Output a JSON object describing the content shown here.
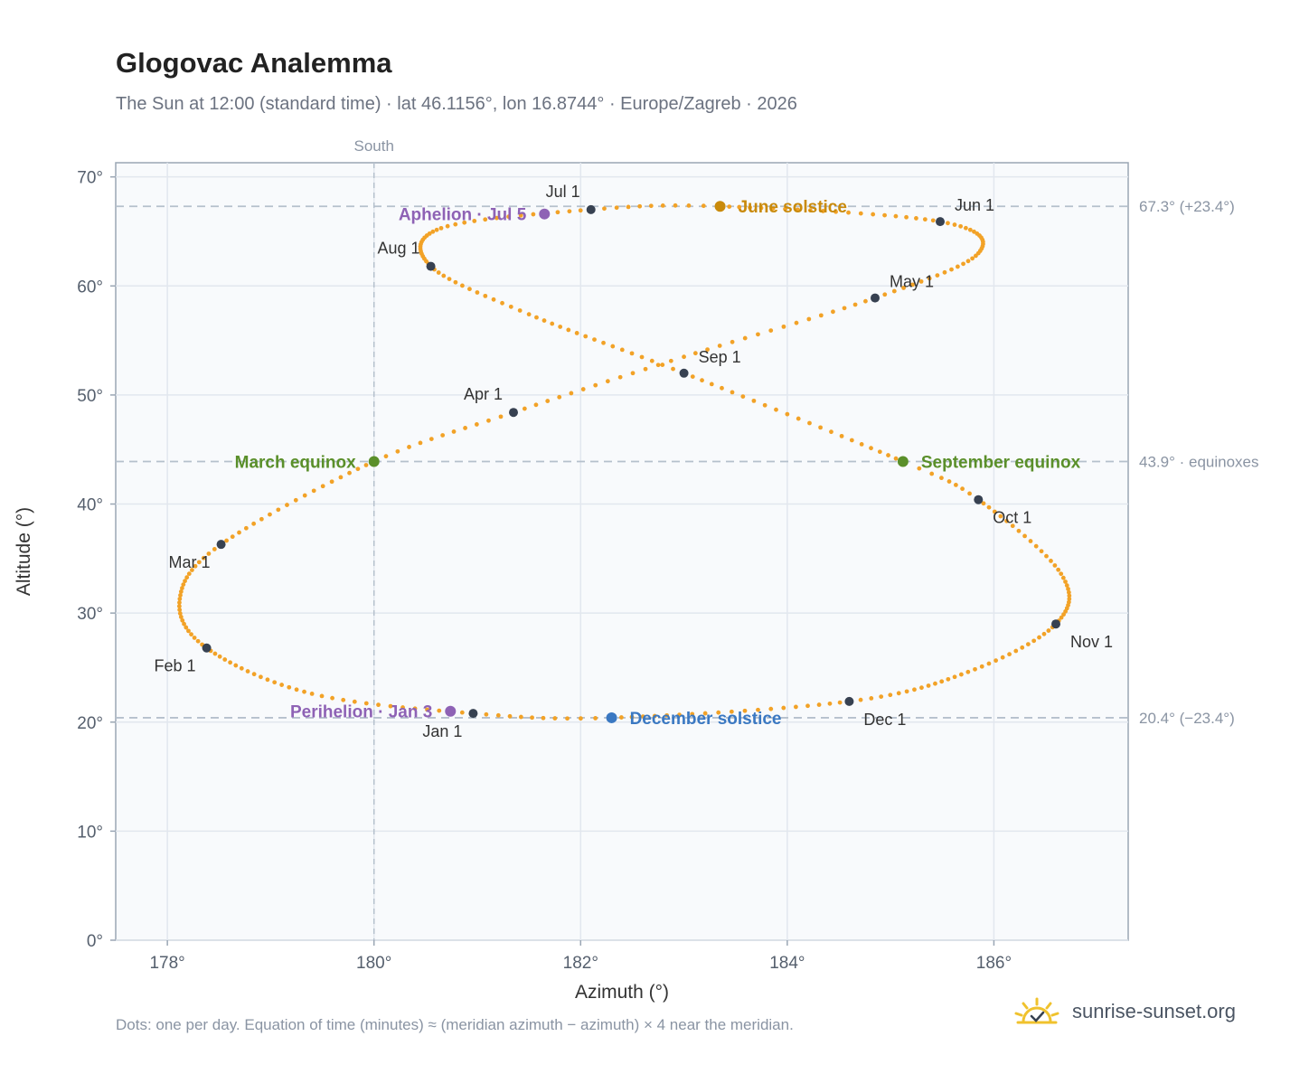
{
  "header": {
    "title": "Glogovac Analemma",
    "subtitle": "The Sun at 12:00 (standard time) · lat 46.1156°, lon 16.8744° · Europe/Zagreb · 2026"
  },
  "footer": {
    "note": "Dots: one per day. Equation of time (minutes) ≈ (meridian azimuth − azimuth) × 4 near the meridian.",
    "brand": "sunrise-sunset.org"
  },
  "colors": {
    "path": "#f2a227",
    "month_dot": "#374151",
    "june_solstice": "#c98a0b",
    "december_solstice": "#3a78c2",
    "equinox": "#5a8f2a",
    "apsis": "#8e62b5",
    "reference_line": "#b5c0cc",
    "plot_bg": "#f8fafc"
  },
  "chart_data": {
    "type": "scatter",
    "xlabel": "Azimuth (°)",
    "ylabel": "Altitude (°)",
    "xlim": [
      177.5,
      187.3
    ],
    "ylim": [
      0,
      71.3
    ],
    "xticks": [
      178,
      180,
      182,
      184,
      186
    ],
    "yticks": [
      0,
      10,
      20,
      30,
      40,
      50,
      60,
      70
    ],
    "grid": true,
    "meridian": {
      "azimuth": 180,
      "label": "South"
    },
    "reference_lines": [
      {
        "altitude": 67.3,
        "label": "67.3° (+23.4°)"
      },
      {
        "altitude": 43.9,
        "label": "43.9° · equinoxes"
      },
      {
        "altitude": 20.4,
        "label": "20.4° (−23.4°)"
      }
    ],
    "path_keypoints": [
      {
        "doy": 1,
        "az": 180.96,
        "alt": 20.8
      },
      {
        "doy": 15,
        "az": 179.4,
        "alt": 22.6
      },
      {
        "doy": 32,
        "az": 178.38,
        "alt": 26.8
      },
      {
        "doy": 46,
        "az": 178.12,
        "alt": 31.3
      },
      {
        "doy": 60,
        "az": 178.52,
        "alt": 36.3
      },
      {
        "doy": 79,
        "az": 180.0,
        "alt": 43.9
      },
      {
        "doy": 91,
        "az": 181.35,
        "alt": 48.4
      },
      {
        "doy": 105,
        "az": 183.0,
        "alt": 53.5
      },
      {
        "doy": 121,
        "az": 184.85,
        "alt": 58.9
      },
      {
        "doy": 136,
        "az": 185.85,
        "alt": 63.0
      },
      {
        "doy": 152,
        "az": 185.48,
        "alt": 65.9
      },
      {
        "doy": 172,
        "az": 183.35,
        "alt": 67.3
      },
      {
        "doy": 182,
        "az": 182.1,
        "alt": 67.0
      },
      {
        "doy": 196,
        "az": 180.65,
        "alt": 65.3
      },
      {
        "doy": 213,
        "az": 180.55,
        "alt": 61.8
      },
      {
        "doy": 227,
        "az": 181.5,
        "alt": 57.4
      },
      {
        "doy": 244,
        "az": 183.0,
        "alt": 52.0
      },
      {
        "doy": 266,
        "az": 185.12,
        "alt": 43.9
      },
      {
        "doy": 274,
        "az": 185.85,
        "alt": 40.4
      },
      {
        "doy": 290,
        "az": 186.65,
        "alt": 33.6
      },
      {
        "doy": 305,
        "az": 186.6,
        "alt": 29.0
      },
      {
        "doy": 320,
        "az": 185.75,
        "alt": 24.6
      },
      {
        "doy": 335,
        "az": 184.6,
        "alt": 21.9
      },
      {
        "doy": 355,
        "az": 182.3,
        "alt": 20.4
      },
      {
        "doy": 366,
        "az": 180.96,
        "alt": 20.8
      }
    ],
    "month_markers": [
      {
        "label": "Jan 1",
        "az": 180.96,
        "alt": 20.8,
        "pos": "below-left"
      },
      {
        "label": "Feb 1",
        "az": 178.38,
        "alt": 26.8,
        "pos": "below-left"
      },
      {
        "label": "Mar 1",
        "az": 178.52,
        "alt": 36.3,
        "pos": "below-left"
      },
      {
        "label": "Apr 1",
        "az": 181.35,
        "alt": 48.4,
        "pos": "above-left"
      },
      {
        "label": "May 1",
        "az": 184.85,
        "alt": 58.9,
        "pos": "above-right"
      },
      {
        "label": "Jun 1",
        "az": 185.48,
        "alt": 65.9,
        "pos": "above-right"
      },
      {
        "label": "Jul 1",
        "az": 182.1,
        "alt": 67.0,
        "pos": "above-left"
      },
      {
        "label": "Aug 1",
        "az": 180.55,
        "alt": 61.8,
        "pos": "above-left"
      },
      {
        "label": "Sep 1",
        "az": 183.0,
        "alt": 52.0,
        "pos": "above-right"
      },
      {
        "label": "Oct 1",
        "az": 185.85,
        "alt": 40.4,
        "pos": "below-right"
      },
      {
        "label": "Nov 1",
        "az": 186.6,
        "alt": 29.0,
        "pos": "below-right"
      },
      {
        "label": "Dec 1",
        "az": 184.6,
        "alt": 21.9,
        "pos": "below-right"
      }
    ],
    "events": [
      {
        "label": "June solstice",
        "az": 183.35,
        "alt": 67.3,
        "kind": "june_solstice",
        "side": "right"
      },
      {
        "label": "December solstice",
        "az": 182.3,
        "alt": 20.4,
        "kind": "december_solstice",
        "side": "right"
      },
      {
        "label": "March equinox",
        "az": 180.0,
        "alt": 43.9,
        "kind": "equinox",
        "side": "left"
      },
      {
        "label": "September equinox",
        "az": 185.12,
        "alt": 43.9,
        "kind": "equinox",
        "side": "right"
      },
      {
        "label": "Aphelion · Jul 5",
        "az": 181.65,
        "alt": 66.6,
        "kind": "apsis",
        "side": "left"
      },
      {
        "label": "Perihelion · Jan 3",
        "az": 180.74,
        "alt": 21.0,
        "kind": "apsis",
        "side": "left"
      }
    ]
  }
}
